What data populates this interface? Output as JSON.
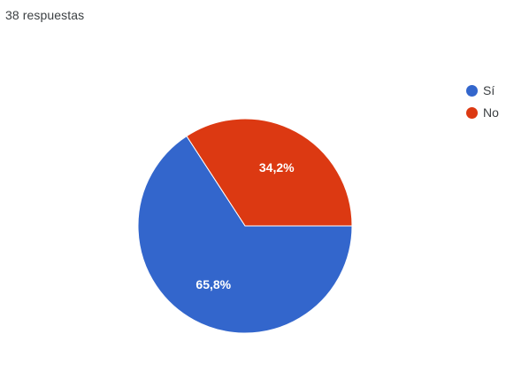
{
  "header": {
    "responses_label": "38 respuestas"
  },
  "colors": {
    "si": "#3366cc",
    "no": "#dc3912",
    "label_text": "#ffffff",
    "slice_border": "#ffffff"
  },
  "chart_data": {
    "type": "pie",
    "categories": [
      "Sí",
      "No"
    ],
    "values": [
      65.8,
      34.2
    ],
    "labels": [
      "65,8%",
      "34,2%"
    ],
    "colors": [
      "#3366cc",
      "#dc3912"
    ],
    "legend_position": "right"
  }
}
